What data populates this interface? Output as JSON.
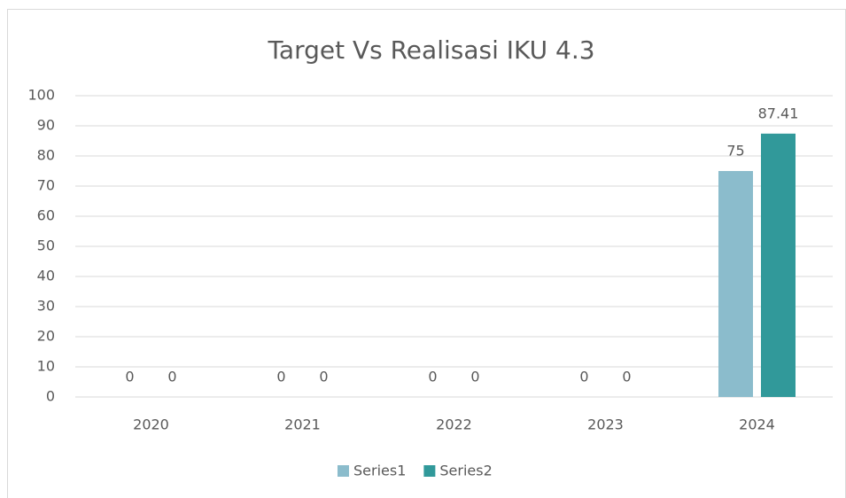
{
  "chart_data": {
    "type": "bar",
    "title": "Target Vs Realisasi IKU 4.3",
    "categories": [
      "2020",
      "2021",
      "2022",
      "2023",
      "2024"
    ],
    "series": [
      {
        "name": "Series1",
        "color": "#8bbccc",
        "values": [
          0,
          0,
          0,
          0,
          75
        ]
      },
      {
        "name": "Series2",
        "color": "#31999a",
        "values": [
          0,
          0,
          0,
          0,
          87.41
        ]
      }
    ],
    "ylim": [
      0,
      100
    ],
    "yticks": [
      0,
      10,
      20,
      30,
      40,
      50,
      60,
      70,
      80,
      90,
      100
    ],
    "grid": true,
    "legend": "bottom"
  }
}
